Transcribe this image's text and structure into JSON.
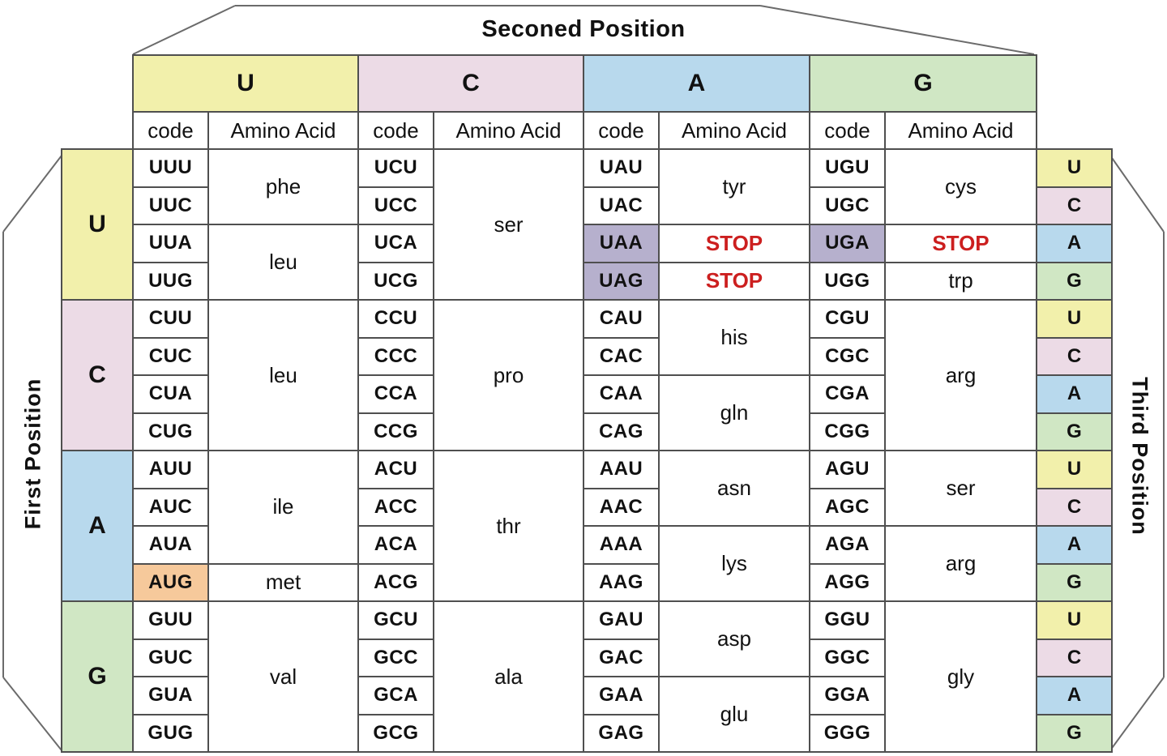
{
  "titles": {
    "top": "Seconed Position",
    "left": "First Position",
    "right": "Third Position"
  },
  "sub_headers": {
    "code": "code",
    "amino": "Amino Acid"
  },
  "column_headers": [
    "U",
    "C",
    "A",
    "G"
  ],
  "colors": {
    "position": {
      "U": "#f2f0ab",
      "C": "#ecdbe6",
      "A": "#b8d9ed",
      "G": "#d0e7c4"
    },
    "stop_bg": "#b6b0cd",
    "met_bg": "#f6c99b",
    "stop_text": "#cc1f1f",
    "border": "#4f4f4f",
    "frame_line": "#6b6b6b"
  },
  "groups": [
    {
      "first": "U",
      "rows": [
        {
          "third": "U",
          "codons": [
            {
              "code": "UUU",
              "amino": "phe",
              "span": 2
            },
            {
              "code": "UCU",
              "amino": "ser",
              "span": 4
            },
            {
              "code": "UAU",
              "amino": "tyr",
              "span": 2
            },
            {
              "code": "UGU",
              "amino": "cys",
              "span": 2
            }
          ]
        },
        {
          "third": "C",
          "codons": [
            {
              "code": "UUC"
            },
            {
              "code": "UCC"
            },
            {
              "code": "UAC"
            },
            {
              "code": "UGC"
            }
          ]
        },
        {
          "third": "A",
          "codons": [
            {
              "code": "UUA",
              "amino": "leu",
              "span": 2
            },
            {
              "code": "UCA"
            },
            {
              "code": "UAA",
              "highlight": "stop",
              "amino": "STOP",
              "span": 1
            },
            {
              "code": "UGA",
              "highlight": "stop",
              "amino": "STOP",
              "span": 1
            }
          ]
        },
        {
          "third": "G",
          "codons": [
            {
              "code": "UUG"
            },
            {
              "code": "UCG"
            },
            {
              "code": "UAG",
              "highlight": "stop",
              "amino": "STOP",
              "span": 1
            },
            {
              "code": "UGG",
              "amino": "trp",
              "span": 1
            }
          ]
        }
      ]
    },
    {
      "first": "C",
      "rows": [
        {
          "third": "U",
          "codons": [
            {
              "code": "CUU",
              "amino": "leu",
              "span": 4
            },
            {
              "code": "CCU",
              "amino": "pro",
              "span": 4
            },
            {
              "code": "CAU",
              "amino": "his",
              "span": 2
            },
            {
              "code": "CGU",
              "amino": "arg",
              "span": 4
            }
          ]
        },
        {
          "third": "C",
          "codons": [
            {
              "code": "CUC"
            },
            {
              "code": "CCC"
            },
            {
              "code": "CAC"
            },
            {
              "code": "CGC"
            }
          ]
        },
        {
          "third": "A",
          "codons": [
            {
              "code": "CUA"
            },
            {
              "code": "CCA"
            },
            {
              "code": "CAA",
              "amino": "gln",
              "span": 2
            },
            {
              "code": "CGA"
            }
          ]
        },
        {
          "third": "G",
          "codons": [
            {
              "code": "CUG"
            },
            {
              "code": "CCG"
            },
            {
              "code": "CAG"
            },
            {
              "code": "CGG"
            }
          ]
        }
      ]
    },
    {
      "first": "A",
      "rows": [
        {
          "third": "U",
          "codons": [
            {
              "code": "AUU",
              "amino": "ile",
              "span": 3
            },
            {
              "code": "ACU",
              "amino": "thr",
              "span": 4
            },
            {
              "code": "AAU",
              "amino": "asn",
              "span": 2
            },
            {
              "code": "AGU",
              "amino": "ser",
              "span": 2
            }
          ]
        },
        {
          "third": "C",
          "codons": [
            {
              "code": "AUC"
            },
            {
              "code": "ACC"
            },
            {
              "code": "AAC"
            },
            {
              "code": "AGC"
            }
          ]
        },
        {
          "third": "A",
          "codons": [
            {
              "code": "AUA"
            },
            {
              "code": "ACA"
            },
            {
              "code": "AAA",
              "amino": "lys",
              "span": 2
            },
            {
              "code": "AGA",
              "amino": "arg",
              "span": 2
            }
          ]
        },
        {
          "third": "G",
          "codons": [
            {
              "code": "AUG",
              "highlight": "met",
              "amino": "met",
              "span": 1
            },
            {
              "code": "ACG"
            },
            {
              "code": "AAG"
            },
            {
              "code": "AGG"
            }
          ]
        }
      ]
    },
    {
      "first": "G",
      "rows": [
        {
          "third": "U",
          "codons": [
            {
              "code": "GUU",
              "amino": "val",
              "span": 4
            },
            {
              "code": "GCU",
              "amino": "ala",
              "span": 4
            },
            {
              "code": "GAU",
              "amino": "asp",
              "span": 2
            },
            {
              "code": "GGU",
              "amino": "gly",
              "span": 4
            }
          ]
        },
        {
          "third": "C",
          "codons": [
            {
              "code": "GUC"
            },
            {
              "code": "GCC"
            },
            {
              "code": "GAC"
            },
            {
              "code": "GGC"
            }
          ]
        },
        {
          "third": "A",
          "codons": [
            {
              "code": "GUA"
            },
            {
              "code": "GCA"
            },
            {
              "code": "GAA",
              "amino": "glu",
              "span": 2
            },
            {
              "code": "GGA"
            }
          ]
        },
        {
          "third": "G",
          "codons": [
            {
              "code": "GUG"
            },
            {
              "code": "GCG"
            },
            {
              "code": "GAG"
            },
            {
              "code": "GGG"
            }
          ]
        }
      ]
    }
  ]
}
